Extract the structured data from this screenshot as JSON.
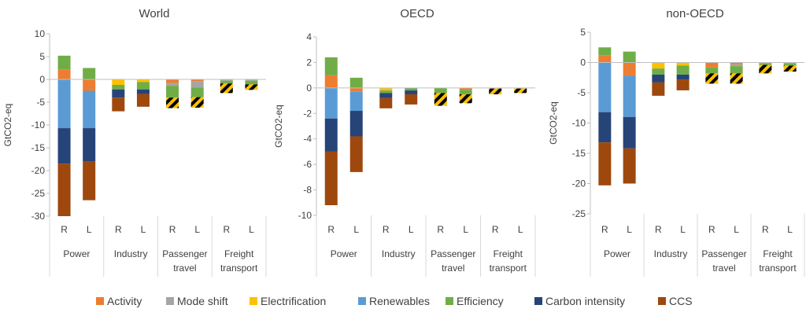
{
  "chart_data": [
    {
      "type": "bar",
      "title": "World",
      "ylabel": "GtCO2-eq",
      "ylim": [
        -30,
        10
      ],
      "yticks": [
        10,
        5,
        0,
        -5,
        -10,
        -15,
        -20,
        -25,
        -30
      ],
      "groups": [
        "Power",
        "Industry",
        "Passenger travel",
        "Freight transport"
      ],
      "bars": [
        {
          "group": "Power",
          "label": "R",
          "pos": {
            "Activity": 2.2,
            "Efficiency": 3.0
          },
          "neg": {
            "Renewables": -10.7,
            "Carbon intensity": -7.8,
            "CCS": -11.5
          }
        },
        {
          "group": "Power",
          "label": "L",
          "pos": {
            "Efficiency": 2.5
          },
          "neg": {
            "Activity": -2.5,
            "Renewables": -8.2,
            "Carbon intensity": -7.3,
            "CCS": -8.5
          }
        },
        {
          "group": "Industry",
          "label": "R",
          "pos": {},
          "neg": {
            "Electrification": -1.2,
            "Efficiency": -1.0,
            "Carbon intensity": -1.8,
            "CCS": -3.0
          }
        },
        {
          "group": "Industry",
          "label": "L",
          "pos": {},
          "neg": {
            "Electrification": -0.6,
            "Efficiency": -1.6,
            "Carbon intensity": -1.0,
            "CCS": -2.8
          }
        },
        {
          "group": "Passenger travel",
          "label": "R",
          "pos": {},
          "neg": {
            "Activity": -0.8,
            "Mode shift": -0.6,
            "Efficiency": -2.6,
            "Hatched": -2.3
          }
        },
        {
          "group": "Passenger travel",
          "label": "L",
          "pos": {},
          "neg": {
            "Activity": -0.4,
            "Mode shift": -1.4,
            "Efficiency": -2.1,
            "Hatched": -2.3
          }
        },
        {
          "group": "Freight transport",
          "label": "R",
          "pos": {},
          "neg": {
            "Mode shift": -0.3,
            "Efficiency": -0.6,
            "Hatched": -2.1
          }
        },
        {
          "group": "Freight transport",
          "label": "L",
          "pos": {},
          "neg": {
            "Mode shift": -0.3,
            "Efficiency": -0.8,
            "Hatched": -1.2
          }
        }
      ]
    },
    {
      "type": "bar",
      "title": "OECD",
      "ylabel": "GtCO2-eq",
      "ylim": [
        -10,
        4
      ],
      "yticks": [
        4,
        2,
        0,
        -2,
        -4,
        -6,
        -8,
        -10
      ],
      "groups": [
        "Power",
        "Industry",
        "Passenger travel",
        "Freight transport"
      ],
      "bars": [
        {
          "group": "Power",
          "label": "R",
          "pos": {
            "Activity": 1.0,
            "Efficiency": 1.4
          },
          "neg": {
            "Renewables": -2.4,
            "Carbon intensity": -2.6,
            "CCS": -4.2
          }
        },
        {
          "group": "Power",
          "label": "L",
          "pos": {
            "Efficiency": 0.8
          },
          "neg": {
            "Activity": -0.3,
            "Renewables": -1.5,
            "Carbon intensity": -2.0,
            "CCS": -2.8
          }
        },
        {
          "group": "Industry",
          "label": "R",
          "pos": {},
          "neg": {
            "Electrification": -0.2,
            "Efficiency": -0.2,
            "Carbon intensity": -0.4,
            "CCS": -0.8
          }
        },
        {
          "group": "Industry",
          "label": "L",
          "pos": {},
          "neg": {
            "Efficiency": -0.2,
            "Carbon intensity": -0.3,
            "CCS": -0.8
          }
        },
        {
          "group": "Passenger travel",
          "label": "R",
          "pos": {},
          "neg": {
            "Efficiency": -0.4,
            "Hatched": -1.0
          }
        },
        {
          "group": "Passenger travel",
          "label": "L",
          "pos": {},
          "neg": {
            "Activity": -0.15,
            "Efficiency": -0.35,
            "Hatched": -0.7
          }
        },
        {
          "group": "Freight transport",
          "label": "R",
          "pos": {},
          "neg": {
            "Mode shift": -0.05,
            "Hatched": -0.45
          }
        },
        {
          "group": "Freight transport",
          "label": "L",
          "pos": {},
          "neg": {
            "Mode shift": -0.05,
            "Hatched": -0.35
          }
        }
      ]
    },
    {
      "type": "bar",
      "title": "non-OECD",
      "ylabel": "GtCO2-eq",
      "ylim": [
        -25,
        5
      ],
      "yticks": [
        5,
        0,
        -5,
        -10,
        -15,
        -20,
        -25
      ],
      "groups": [
        "Power",
        "Industry",
        "Passenger travel",
        "Freight transport"
      ],
      "bars": [
        {
          "group": "Power",
          "label": "R",
          "pos": {
            "Activity": 1.2,
            "Efficiency": 1.3
          },
          "neg": {
            "Renewables": -8.2,
            "Carbon intensity": -5.0,
            "CCS": -7.1
          }
        },
        {
          "group": "Power",
          "label": "L",
          "pos": {
            "Efficiency": 1.8
          },
          "neg": {
            "Activity": -2.2,
            "Renewables": -6.8,
            "Carbon intensity": -5.2,
            "CCS": -5.8
          }
        },
        {
          "group": "Industry",
          "label": "R",
          "pos": {},
          "neg": {
            "Electrification": -1.0,
            "Efficiency": -1.0,
            "Carbon intensity": -1.3,
            "CCS": -2.2
          }
        },
        {
          "group": "Industry",
          "label": "L",
          "pos": {},
          "neg": {
            "Electrification": -0.5,
            "Efficiency": -1.5,
            "Carbon intensity": -0.8,
            "CCS": -1.8
          }
        },
        {
          "group": "Passenger travel",
          "label": "R",
          "pos": {},
          "neg": {
            "Activity": -0.8,
            "Efficiency": -1.0,
            "Hatched": -1.7
          }
        },
        {
          "group": "Passenger travel",
          "label": "L",
          "pos": {},
          "neg": {
            "Activity": -0.3,
            "Mode shift": -0.3,
            "Efficiency": -1.2,
            "Hatched": -1.7
          }
        },
        {
          "group": "Freight transport",
          "label": "R",
          "pos": {},
          "neg": {
            "Mode shift": -0.2,
            "Efficiency": -0.2,
            "Hatched": -1.4
          }
        },
        {
          "group": "Freight transport",
          "label": "L",
          "pos": {},
          "neg": {
            "Mode shift": -0.2,
            "Efficiency": -0.3,
            "Hatched": -1.0
          }
        }
      ]
    }
  ],
  "legend": [
    {
      "name": "Activity",
      "color": "#ED7D31"
    },
    {
      "name": "Mode shift",
      "color": "#A5A5A5"
    },
    {
      "name": "Electrification",
      "color": "#FFC000"
    },
    {
      "name": "Renewables",
      "color": "#5B9BD5"
    },
    {
      "name": "Efficiency",
      "color": "#70AD47"
    },
    {
      "name": "Carbon intensity",
      "color": "#264478"
    },
    {
      "name": "CCS",
      "color": "#9E480E"
    }
  ],
  "hatch_colors": [
    "#000000",
    "#FFC000"
  ],
  "stack_order_positive": [
    "Activity",
    "Efficiency"
  ],
  "stack_order_negative": [
    "Activity",
    "Mode shift",
    "Electrification",
    "Renewables",
    "Efficiency",
    "Carbon intensity",
    "CCS",
    "Hatched"
  ],
  "group_label_lines": {
    "Power": [
      "Power"
    ],
    "Industry": [
      "Industry"
    ],
    "Passenger travel": [
      "Passenger",
      "travel"
    ],
    "Freight transport": [
      "Freight",
      "transport"
    ]
  }
}
